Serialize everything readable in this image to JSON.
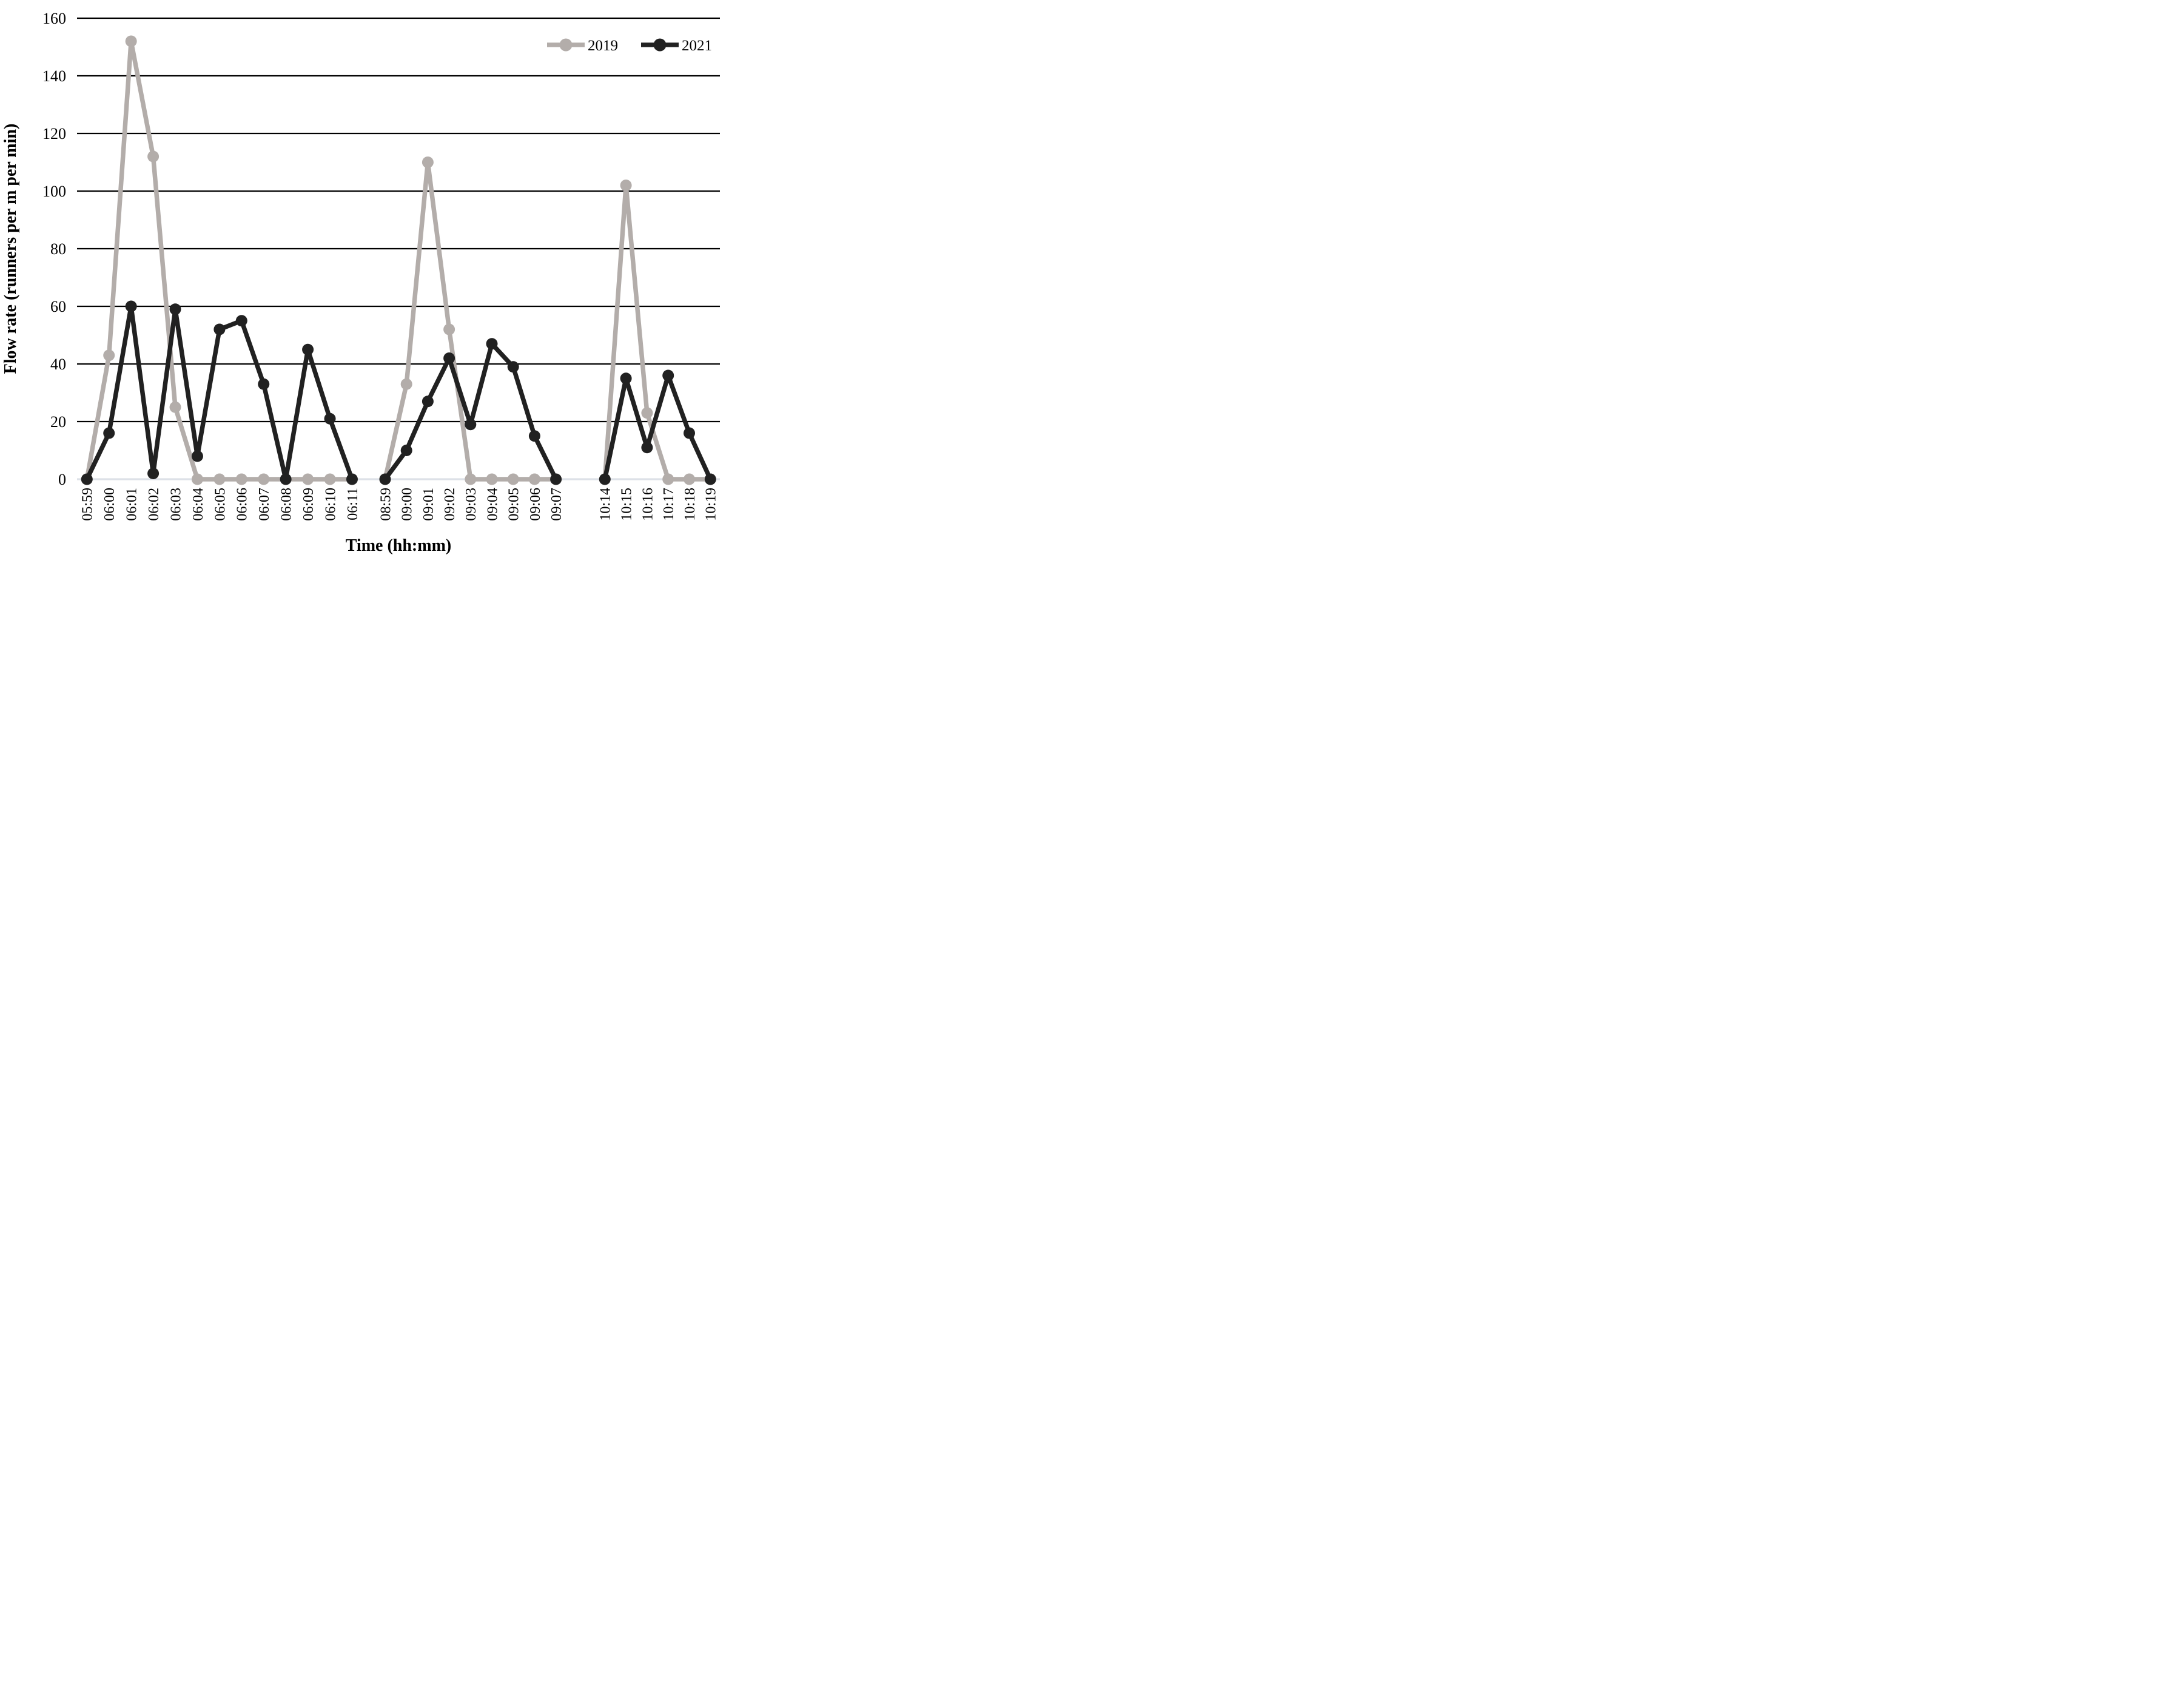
{
  "chart_data": {
    "type": "line",
    "title": "",
    "xlabel": "Time (hh:mm)",
    "ylabel": "Flow rate (runners per m per min)",
    "ylim": [
      0,
      160
    ],
    "ytick_interval": 20,
    "yticks": [
      0,
      20,
      40,
      60,
      80,
      100,
      120,
      140,
      160
    ],
    "grid": "horizontal",
    "legend_position": "top-right-inside",
    "legend": [
      {
        "name": "2019",
        "color": "#b3adaa"
      },
      {
        "name": "2021",
        "color": "#212121"
      }
    ],
    "style": {
      "gridline_color": "#000000",
      "baseline_color": "#dde1e8",
      "marker": "circle",
      "background": "#ffffff"
    },
    "clusters": [
      {
        "times": [
          "05:59",
          "06:00",
          "06:01",
          "06:02",
          "06:03",
          "06:04",
          "06:05",
          "06:06",
          "06:07",
          "06:08",
          "06:09",
          "06:10",
          "06:11"
        ],
        "series": [
          {
            "name": "2019",
            "values": [
              0,
              43,
              152,
              112,
              25,
              0,
              0,
              0,
              0,
              0,
              0,
              0,
              0
            ]
          },
          {
            "name": "2021",
            "values": [
              0,
              16,
              60,
              2,
              59,
              8,
              52,
              55,
              33,
              0,
              45,
              21,
              0
            ]
          }
        ]
      },
      {
        "times": [
          "08:59",
          "09:00",
          "09:01",
          "09:02",
          "09:03",
          "09:04",
          "09:05",
          "09:06",
          "09:07"
        ],
        "series": [
          {
            "name": "2019",
            "values": [
              0,
              33,
              110,
              52,
              0,
              0,
              0,
              0,
              0
            ]
          },
          {
            "name": "2021",
            "values": [
              0,
              10,
              27,
              42,
              19,
              47,
              39,
              15,
              0
            ]
          }
        ]
      },
      {
        "times": [
          "10:14",
          "10:15",
          "10:16",
          "10:17",
          "10:18",
          "10:19"
        ],
        "series": [
          {
            "name": "2019",
            "values": [
              0,
              102,
              23,
              0,
              0,
              0
            ]
          },
          {
            "name": "2021",
            "values": [
              0,
              35,
              11,
              36,
              16,
              0
            ]
          }
        ]
      }
    ]
  }
}
